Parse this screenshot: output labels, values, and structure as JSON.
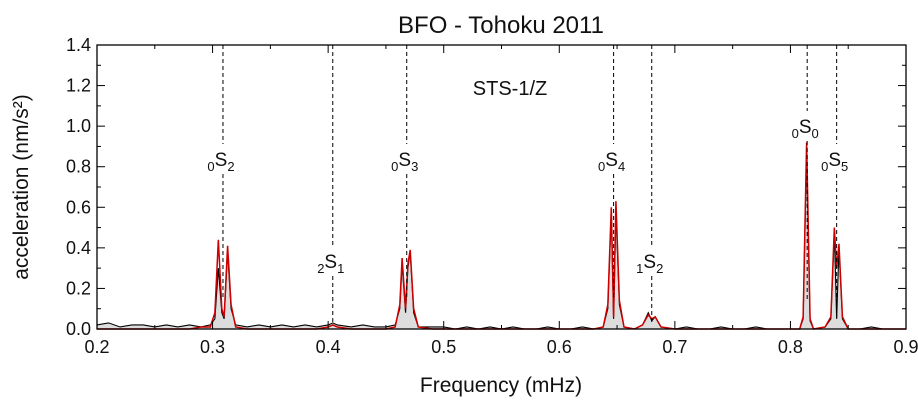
{
  "chart_data": {
    "type": "line",
    "title": "BFO - Tohoku 2011",
    "xlabel": "Frequency (mHz)",
    "ylabel": "acceleration (nm/s²)",
    "annotation": "STS-1/Z",
    "x": [
      0.2,
      0.21,
      0.22,
      0.23,
      0.24,
      0.25,
      0.26,
      0.27,
      0.28,
      0.29,
      0.298,
      0.302,
      0.305,
      0.308,
      0.31,
      0.313,
      0.316,
      0.32,
      0.33,
      0.34,
      0.35,
      0.36,
      0.37,
      0.38,
      0.39,
      0.4,
      0.404,
      0.408,
      0.42,
      0.43,
      0.44,
      0.45,
      0.458,
      0.462,
      0.464,
      0.467,
      0.469,
      0.471,
      0.474,
      0.478,
      0.49,
      0.5,
      0.51,
      0.52,
      0.53,
      0.54,
      0.55,
      0.56,
      0.57,
      0.58,
      0.59,
      0.6,
      0.61,
      0.62,
      0.63,
      0.638,
      0.642,
      0.645,
      0.647,
      0.649,
      0.652,
      0.656,
      0.665,
      0.672,
      0.677,
      0.68,
      0.683,
      0.688,
      0.7,
      0.71,
      0.72,
      0.73,
      0.74,
      0.75,
      0.76,
      0.77,
      0.78,
      0.79,
      0.8,
      0.808,
      0.811,
      0.814,
      0.817,
      0.82,
      0.83,
      0.835,
      0.838,
      0.84,
      0.842,
      0.845,
      0.85,
      0.86,
      0.87,
      0.88,
      0.89,
      0.9
    ],
    "series": [
      {
        "color": "#000000",
        "fill": "#dddddd",
        "values": [
          0.02,
          0.03,
          0.01,
          0.02,
          0.02,
          0.01,
          0.02,
          0.01,
          0.02,
          0.01,
          0.02,
          0.05,
          0.3,
          0.08,
          0.05,
          0.38,
          0.1,
          0.02,
          0.01,
          0.02,
          0.01,
          0.02,
          0.01,
          0.02,
          0.01,
          0.02,
          0.03,
          0.02,
          0.01,
          0.02,
          0.01,
          0.01,
          0.02,
          0.1,
          0.32,
          0.08,
          0.3,
          0.38,
          0.08,
          0.01,
          0.01,
          0.01,
          0,
          0.01,
          0,
          0.01,
          0,
          0.01,
          0,
          0,
          0.01,
          0,
          0,
          0.01,
          0,
          0.01,
          0.1,
          0.58,
          0.05,
          0.58,
          0.12,
          0.01,
          0,
          0.02,
          0.08,
          0.04,
          0.06,
          0.01,
          0,
          0.01,
          0,
          0,
          0.01,
          0,
          0,
          0.01,
          0,
          0,
          0,
          0,
          0.05,
          0.88,
          0.04,
          0,
          0.01,
          0.05,
          0.48,
          0.05,
          0.4,
          0.05,
          0,
          0,
          0.01,
          0,
          0,
          0
        ]
      },
      {
        "color": "#cc0000",
        "values": [
          0,
          0,
          0,
          0,
          0,
          0,
          0,
          0,
          0,
          0.01,
          0.01,
          0.08,
          0.44,
          0.1,
          0.06,
          0.41,
          0.12,
          0.01,
          0,
          0,
          0,
          0,
          0,
          0,
          0,
          0.01,
          0.02,
          0.01,
          0,
          0,
          0,
          0,
          0.01,
          0.12,
          0.35,
          0.1,
          0.32,
          0.39,
          0.1,
          0.01,
          0,
          0,
          0,
          0,
          0,
          0,
          0,
          0,
          0,
          0,
          0,
          0,
          0,
          0,
          0,
          0.01,
          0.12,
          0.6,
          0.06,
          0.63,
          0.14,
          0.01,
          0,
          0.02,
          0.07,
          0.05,
          0.06,
          0.01,
          0,
          0,
          0,
          0,
          0,
          0,
          0,
          0,
          0,
          0,
          0,
          0,
          0.06,
          0.92,
          0.05,
          0,
          0.01,
          0.06,
          0.5,
          0.3,
          0.42,
          0.06,
          0,
          0,
          0,
          0,
          0,
          0
        ]
      }
    ],
    "modes": [
      {
        "n": "0",
        "name": "S",
        "l": "2",
        "freq": 0.309
      },
      {
        "n": "2",
        "name": "S",
        "l": "1",
        "freq": 0.404
      },
      {
        "n": "0",
        "name": "S",
        "l": "3",
        "freq": 0.468
      },
      {
        "n": "0",
        "name": "S",
        "l": "4",
        "freq": 0.647
      },
      {
        "n": "1",
        "name": "S",
        "l": "2",
        "freq": 0.68
      },
      {
        "n": "0",
        "name": "S",
        "l": "0",
        "freq": 0.8145
      },
      {
        "n": "0",
        "name": "S",
        "l": "5",
        "freq": 0.84
      }
    ],
    "xlim": [
      0.2,
      0.9
    ],
    "xticks": [
      0.2,
      0.3,
      0.4,
      0.5,
      0.6,
      0.7,
      0.8,
      0.9
    ],
    "ylim": [
      0,
      1.4
    ],
    "yticks": [
      {
        "value": 0,
        "label": "0.0"
      },
      0.2,
      0.4,
      0.6,
      0.8,
      {
        "value": 1,
        "label": "1.0"
      },
      1.2,
      1.4
    ]
  }
}
